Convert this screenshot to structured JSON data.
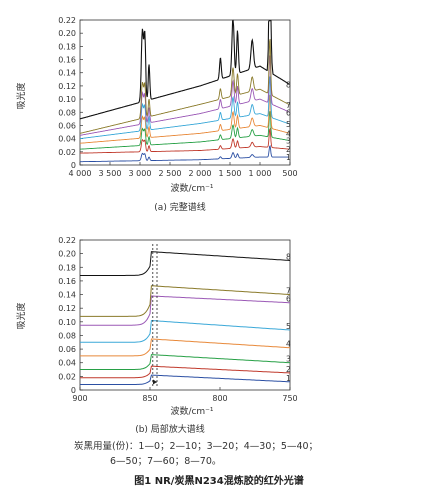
{
  "chart_data": [
    {
      "type": "line",
      "panel_caption": "(a) 完整谱线",
      "xlabel": "波数/cm⁻¹",
      "ylabel": "吸光度",
      "xlim": [
        4000,
        500
      ],
      "x_reversed": true,
      "ylim": [
        0,
        0.22
      ],
      "xticks": [
        "4 000",
        "3 500",
        "3 000",
        "2 500",
        "2 000",
        "1 500",
        "1 000",
        "500"
      ],
      "xtick_values": [
        4000,
        3500,
        3000,
        2500,
        2000,
        1500,
        1000,
        500
      ],
      "yticks": [
        "0",
        "0.02",
        "0.04",
        "0.06",
        "0.08",
        "0.10",
        "0.12",
        "0.14",
        "0.16",
        "0.18",
        "0.20",
        "0.22"
      ],
      "ytick_values": [
        0,
        0.02,
        0.04,
        0.06,
        0.08,
        0.1,
        0.12,
        0.14,
        0.16,
        0.18,
        0.2,
        0.22
      ],
      "grid": false,
      "series": [
        {
          "name": "1",
          "color": "#2b4fa3",
          "values_at_4000_2000_1000": [
            0.005,
            0.008,
            0.012
          ]
        },
        {
          "name": "2",
          "color": "#c0392b",
          "values_at_4000_2000_1000": [
            0.018,
            0.022,
            0.028
          ]
        },
        {
          "name": "3",
          "color": "#27a046",
          "values_at_4000_2000_1000": [
            0.024,
            0.035,
            0.045
          ]
        },
        {
          "name": "4",
          "color": "#e8893a",
          "values_at_4000_2000_1000": [
            0.033,
            0.048,
            0.06
          ]
        },
        {
          "name": "5",
          "color": "#3aa8d8",
          "values_at_4000_2000_1000": [
            0.04,
            0.063,
            0.078
          ]
        },
        {
          "name": "6",
          "color": "#9b59b6",
          "values_at_4000_2000_1000": [
            0.045,
            0.078,
            0.1
          ]
        },
        {
          "name": "7",
          "color": "#8a7a2a",
          "values_at_4000_2000_1000": [
            0.048,
            0.092,
            0.115
          ]
        },
        {
          "name": "8",
          "color": "#111111",
          "values_at_4000_2000_1000": [
            0.07,
            0.12,
            0.15
          ]
        }
      ],
      "series_labels": [
        "1",
        "2",
        "3",
        "4",
        "5",
        "6",
        "7",
        "8"
      ]
    },
    {
      "type": "line",
      "panel_caption": "(b) 局部放大谱线",
      "xlabel": "波数/cm⁻¹",
      "ylabel": "吸光度",
      "xlim": [
        900,
        750
      ],
      "x_reversed": true,
      "ylim": [
        0,
        0.22
      ],
      "xticks": [
        "900",
        "850",
        "800",
        "750"
      ],
      "xtick_values": [
        900,
        850,
        800,
        750
      ],
      "yticks": [
        "0",
        "0.02",
        "0.04",
        "0.06",
        "0.08",
        "0.10",
        "0.12",
        "0.14",
        "0.16",
        "0.18",
        "0.20",
        "0.22"
      ],
      "ytick_values": [
        0,
        0.02,
        0.04,
        0.06,
        0.08,
        0.1,
        0.12,
        0.14,
        0.16,
        0.18,
        0.2,
        0.22
      ],
      "grid": false,
      "dashed_markers_at": [
        848,
        845
      ],
      "series": [
        {
          "name": "1",
          "color": "#2b4fa3",
          "baseline": 0.008,
          "peak": 0.022,
          "end": 0.012
        },
        {
          "name": "2",
          "color": "#c0392b",
          "baseline": 0.018,
          "peak": 0.035,
          "end": 0.025
        },
        {
          "name": "3",
          "color": "#27a046",
          "baseline": 0.03,
          "peak": 0.052,
          "end": 0.04
        },
        {
          "name": "4",
          "color": "#e8893a",
          "baseline": 0.05,
          "peak": 0.075,
          "end": 0.062
        },
        {
          "name": "5",
          "color": "#3aa8d8",
          "baseline": 0.07,
          "peak": 0.102,
          "end": 0.088
        },
        {
          "name": "6",
          "color": "#9b59b6",
          "baseline": 0.095,
          "peak": 0.138,
          "end": 0.128
        },
        {
          "name": "7",
          "color": "#8a7a2a",
          "baseline": 0.108,
          "peak": 0.153,
          "end": 0.14
        },
        {
          "name": "8",
          "color": "#111111",
          "baseline": 0.168,
          "peak": 0.203,
          "end": 0.19
        }
      ],
      "series_labels": [
        "1",
        "2",
        "3",
        "4",
        "5",
        "6",
        "7",
        "8"
      ]
    }
  ],
  "legend_note_line1": "炭黑用量(份)：1—0；2—10；3—20；4—30；5—40；",
  "legend_note_line2": "6—50；7—60；8—70。",
  "figure_title": "图1   NR/炭黑N234混炼胶的红外光谱"
}
